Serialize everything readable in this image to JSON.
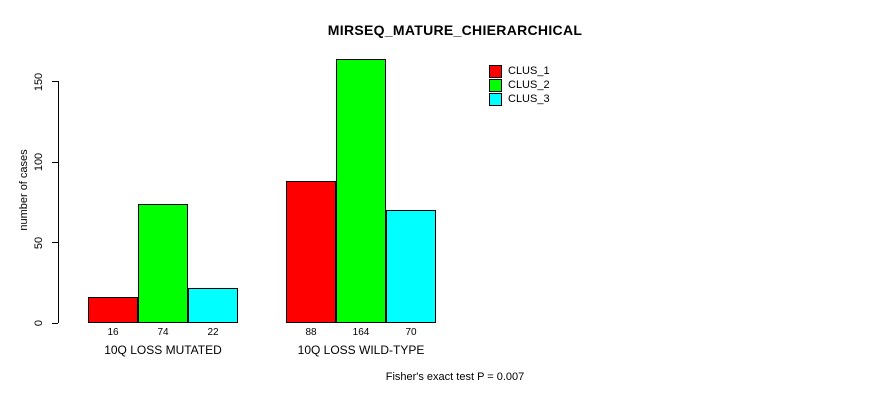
{
  "title": "MIRSEQ_MATURE_CHIERARCHICAL",
  "footer_note": "Fisher's exact test P = 0.007",
  "colors": {
    "clus_1": "#ff0000",
    "clus_2": "#00ff00",
    "clus_3": "#00ffff",
    "axis": "#000000",
    "background": "#ffffff"
  },
  "chart_data": {
    "type": "bar",
    "title": "MIRSEQ_MATURE_CHIERARCHICAL",
    "xlabel": "",
    "ylabel": "number of cases",
    "categories": [
      "10Q LOSS MUTATED",
      "10Q LOSS WILD-TYPE"
    ],
    "series": [
      {
        "name": "CLUS_1",
        "color": "#ff0000",
        "values": [
          16,
          88
        ]
      },
      {
        "name": "CLUS_2",
        "color": "#00ff00",
        "values": [
          74,
          164
        ]
      },
      {
        "name": "CLUS_3",
        "color": "#00ffff",
        "values": [
          22,
          70
        ]
      }
    ],
    "bar_value_labels": [
      [
        16,
        74,
        22
      ],
      [
        88,
        164,
        70
      ]
    ],
    "yticks": [
      0,
      50,
      100,
      150
    ],
    "ylim": [
      0,
      164
    ],
    "grid": false,
    "legend_position": "top-right",
    "legend_entries": [
      "CLUS_1",
      "CLUS_2",
      "CLUS_3"
    ],
    "annotation": "Fisher's exact test P = 0.007"
  }
}
